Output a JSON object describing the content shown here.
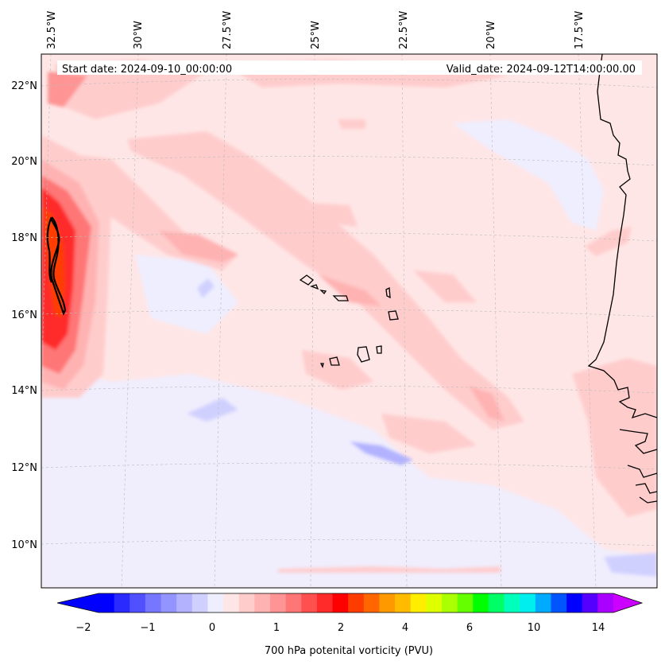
{
  "map": {
    "start_date": "Start date: 2024-09-10_00:00:00",
    "valid_date": "Valid_date: 2024-09-12T14:00:00.00",
    "lon_labels": [
      "32.5°W",
      "30°W",
      "27.5°W",
      "25°W",
      "22.5°W",
      "20°W",
      "17.5°W"
    ],
    "lat_labels": [
      "22°N",
      "20°N",
      "18°N",
      "16°N",
      "14°N",
      "12°N",
      "10°N"
    ],
    "background_color": "#ffe6e6",
    "coastline_color": "#000000"
  },
  "colorbar": {
    "label": "700 hPa potenital vorticity (PVU)",
    "tick_labels": [
      "−2",
      "−1",
      "0",
      "1",
      "2",
      "4",
      "6",
      "10",
      "14"
    ],
    "colors": [
      "#0000ff",
      "#2a2aff",
      "#5050ff",
      "#7676ff",
      "#9494ff",
      "#b2b2ff",
      "#d0d0ff",
      "#eeeeff",
      "#ffe6e6",
      "#ffcccc",
      "#ffb2b2",
      "#ff9494",
      "#ff7676",
      "#ff5050",
      "#ff2a2a",
      "#ff0000",
      "#ff3c00",
      "#ff6600",
      "#ff9900",
      "#ffbb00",
      "#ffee00",
      "#ddff00",
      "#aaff00",
      "#66ff00",
      "#00ff00",
      "#00ff66",
      "#00ffbb",
      "#00eeee",
      "#00aaff",
      "#0055ff",
      "#0000ff",
      "#5500ff",
      "#aa00ff"
    ],
    "extend_low_color": "#0000ff",
    "extend_high_color": "#cc00ff"
  }
}
